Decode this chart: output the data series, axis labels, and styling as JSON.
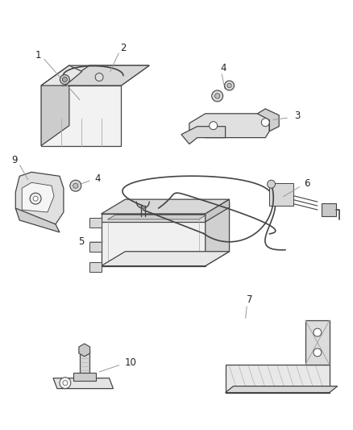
{
  "background_color": "#ffffff",
  "fig_width": 4.38,
  "fig_height": 5.33,
  "dpi": 100,
  "line_color": "#444444",
  "line_width": 0.9,
  "face_light": "#f0f0f0",
  "face_mid": "#d8d8d8",
  "face_dark": "#c0c0c0",
  "label_color": "#222222",
  "leader_color": "#999999"
}
